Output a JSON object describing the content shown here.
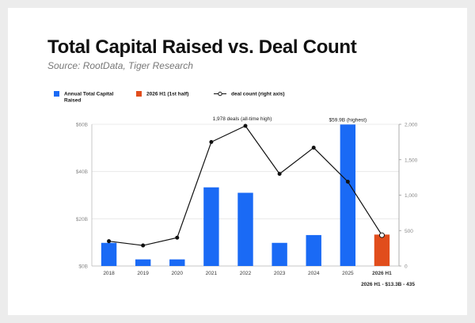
{
  "header": {
    "title": "Total Capital Raised vs. Deal Count",
    "source": "Source: RootData, Tiger Research"
  },
  "colors": {
    "bar": "#1a6af5",
    "highlight": "#e14d1c",
    "line": "#111111",
    "grid": "#e5e5e5",
    "annotation_blue": "#1a6af5",
    "annotation_orange": "#e14d1c"
  },
  "chart_data": {
    "type": "bar",
    "categories": [
      "2018",
      "2019",
      "2020",
      "2021",
      "2022",
      "2023",
      "2024",
      "2025",
      "2026 H1"
    ],
    "ylim_left": [
      0,
      60
    ],
    "yticks_left": [
      "$0B",
      "$20B",
      "$40B",
      "$60B"
    ],
    "ylim_right": [
      0,
      2000
    ],
    "yticks_right": [
      "0",
      "500",
      "1,000",
      "1,500",
      "2,000"
    ],
    "series": [
      {
        "name": "Annual Total Capital Raised",
        "kind": "bar",
        "axis": "left",
        "values": [
          9.8,
          2.8,
          2.8,
          33.3,
          31.0,
          9.8,
          13.1,
          59.9,
          null
        ]
      },
      {
        "name": "2026 H1 (1st half)",
        "kind": "bar",
        "axis": "left",
        "values": [
          null,
          null,
          null,
          null,
          null,
          null,
          null,
          null,
          13.3
        ]
      },
      {
        "name": "deal count (right axis)",
        "kind": "line",
        "axis": "right",
        "values": [
          350,
          290,
          400,
          1750,
          1978,
          1300,
          1670,
          1190,
          435
        ]
      }
    ],
    "annotations": [
      {
        "text": "1,978 deals (all-time high)",
        "series": 2,
        "index": 4
      },
      {
        "text": "$59.9B (highest)",
        "series": 0,
        "index": 7
      },
      {
        "text": "2026 H1 - $13.3B - 435",
        "series": 1,
        "index": 8
      }
    ],
    "legend_position": "top-left",
    "grid": true
  }
}
